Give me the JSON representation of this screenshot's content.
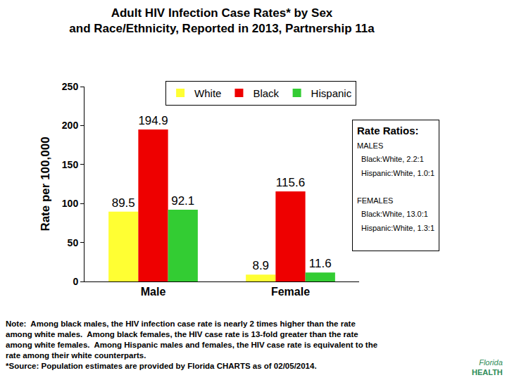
{
  "chart_data": {
    "type": "bar",
    "title": [
      "Adult HIV Infection Case Rates* by Sex",
      "and Race/Ethnicity, Reported in 2013, Partnership 11a"
    ],
    "y_label": "Rate per 100,000",
    "categories": [
      "Male",
      "Female"
    ],
    "series": [
      {
        "name": "White",
        "color": "#ffff33",
        "values": [
          89.5,
          8.9
        ]
      },
      {
        "name": "Black",
        "color": "#ee0000",
        "values": [
          194.9,
          115.6
        ]
      },
      {
        "name": "Hispanic",
        "color": "#33cc33",
        "values": [
          92.1,
          11.6
        ]
      }
    ],
    "ylim": [
      0,
      250
    ],
    "yticks": [
      0,
      50,
      100,
      150,
      200,
      250
    ],
    "grid": false,
    "legend": "top right",
    "data_labels": true,
    "rate_ratios": {
      "title": "Rate Ratios:",
      "groups": [
        {
          "label": "MALES",
          "items": [
            "Black:White, 2.2:1",
            "Hispanic:White, 1.0:1"
          ]
        },
        {
          "label": "FEMALES",
          "items": [
            "Black:White, 13.0:1",
            "Hispanic:White, 1.3:1"
          ]
        }
      ]
    },
    "note": [
      "Note:  Among black males, the HIV infection case rate is nearly 2 times higher than the rate",
      "among white males.  Among black females, the HIV case rate is 13-fold greater than the rate",
      "among white females.  Among Hispanic males and females, the HIV case rate is equivalent to the",
      "rate among their white counterparts.",
      "*Source: Population estimates are provided by Florida CHARTS as of 02/05/2014."
    ],
    "logo": [
      "Florida",
      "HEALTH"
    ]
  }
}
